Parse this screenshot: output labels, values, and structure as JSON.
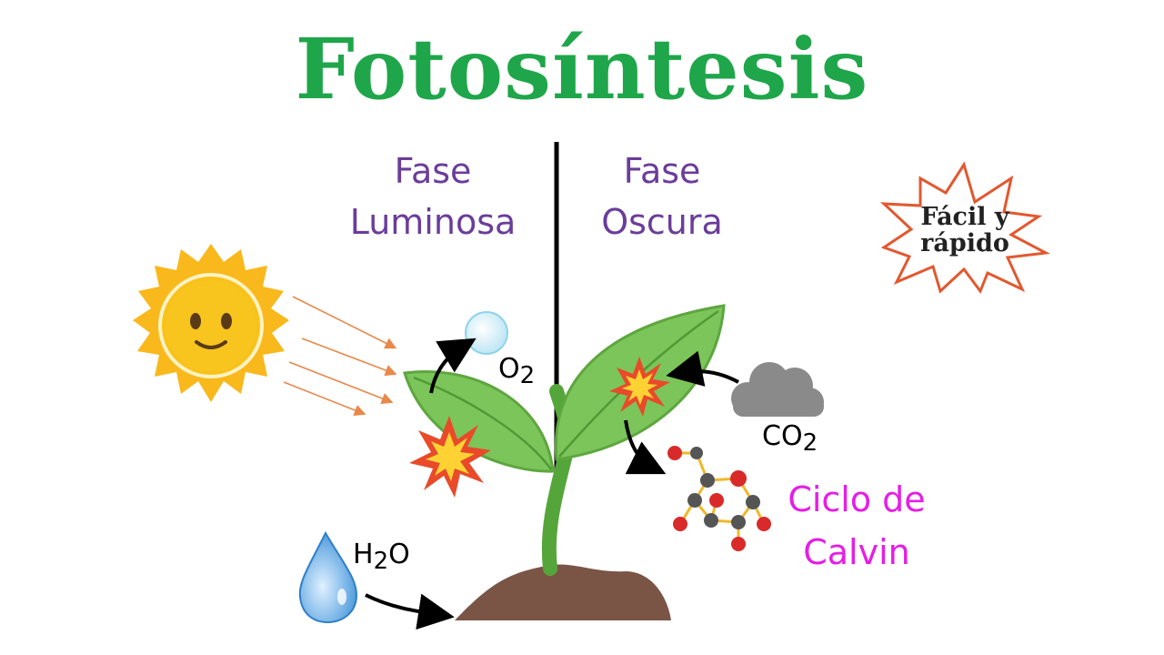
{
  "title": "Fotosíntesis",
  "phases": {
    "light": {
      "line1": "Fase",
      "line2": "Luminosa"
    },
    "dark": {
      "line1": "Fase",
      "line2": "Oscura"
    }
  },
  "badge": {
    "line1": "Fácil y",
    "line2": "rápido"
  },
  "molecules": {
    "oxygen": {
      "symbol": "O",
      "sub": "2"
    },
    "carbon_dioxide": {
      "symbol": "CO",
      "sub": "2"
    },
    "water": {
      "h": "H",
      "sub": "2",
      "o": "O"
    }
  },
  "calvin": {
    "line1": "Ciclo de",
    "line2": "Calvin"
  },
  "colors": {
    "title": "#1fa64a",
    "phase": "#6a3d9a",
    "calvin": "#e51ee5",
    "leaf": "#7cc55a",
    "sun": "#f9c21b",
    "soil": "#7a5545"
  }
}
